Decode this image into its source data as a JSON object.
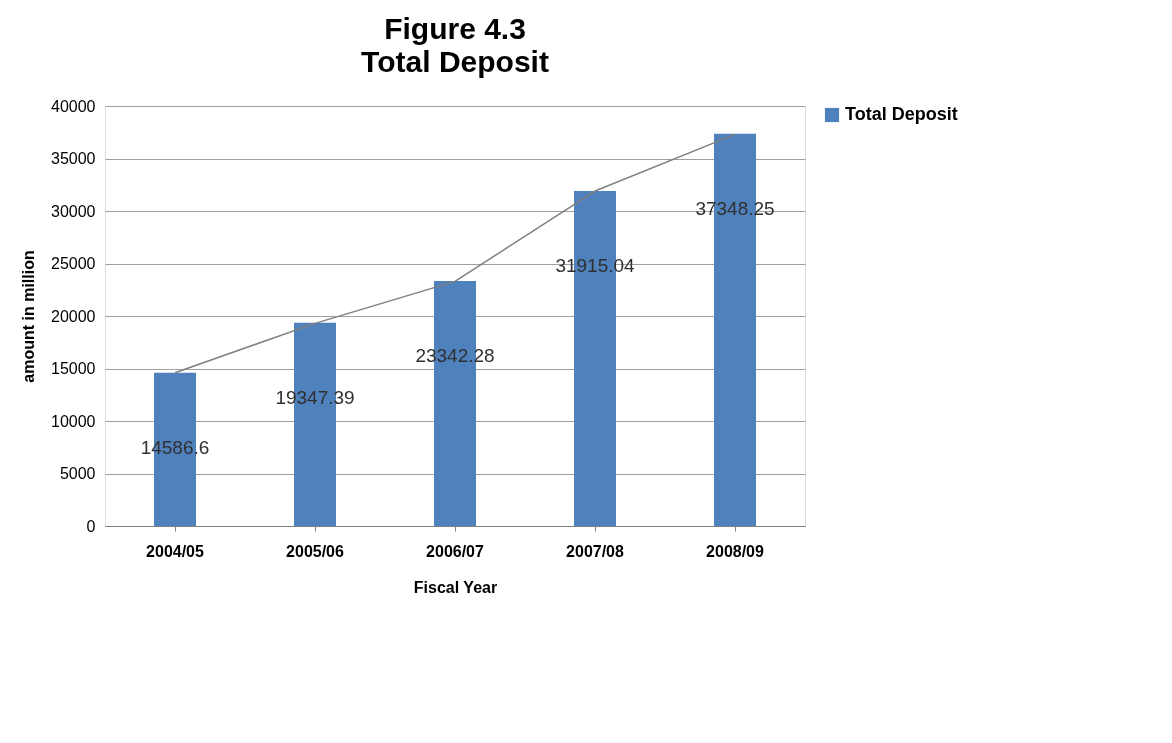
{
  "chart_data": {
    "type": "bar",
    "title": "Figure 4.3",
    "subtitle": "Total Deposit",
    "xlabel": "Fiscal Year",
    "ylabel": "amount in million",
    "categories": [
      "2004/05",
      "2005/06",
      "2006/07",
      "2007/08",
      "2008/09"
    ],
    "series": [
      {
        "name": "Total Deposit",
        "color": "#4f81bd",
        "values": [
          14586.6,
          19347.39,
          23342.28,
          31915.04,
          37348.25
        ],
        "value_labels": [
          "14586.6",
          "19347.39",
          "23342.28",
          "31915.04",
          "37348.25"
        ]
      },
      {
        "type": "line",
        "color": "#808080",
        "values": [
          14600,
          19300,
          23300,
          31900,
          37300
        ]
      }
    ],
    "ylim": [
      0,
      40000
    ],
    "yticks": [
      0,
      5000,
      10000,
      15000,
      20000,
      25000,
      30000,
      35000,
      40000
    ],
    "grid": "y",
    "legend": "right",
    "marker": "none"
  }
}
